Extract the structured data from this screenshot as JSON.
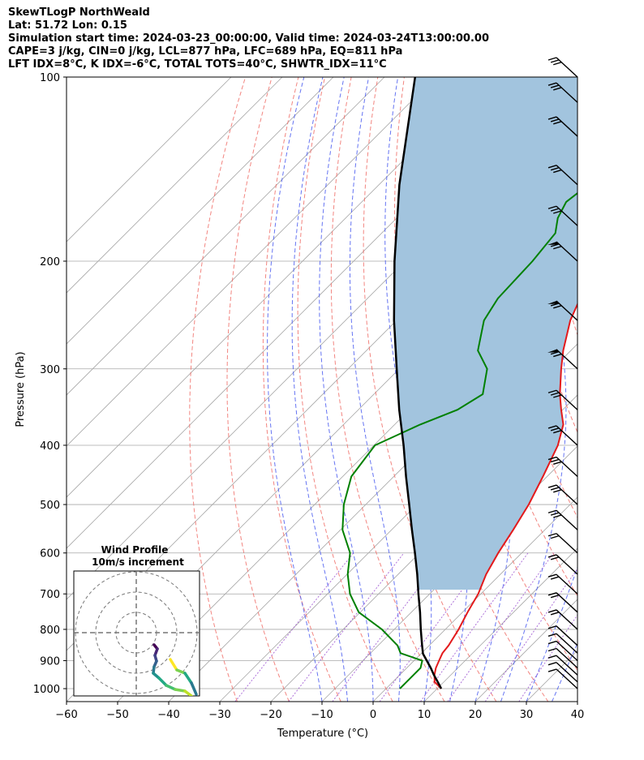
{
  "header": {
    "title": "SkewTLogP NorthWeald",
    "location": "Lat: 51.72   Lon: 0.15",
    "times": "Simulation start time: 2024-03-23_00:00:00, Valid time: 2024-03-24T13:00:00.00",
    "indices_1": "CAPE=3 j/kg, CIN=0 j/kg, LCL=877 hPa, LFC=689 hPa, EQ=811 hPa",
    "indices_2": "LFT IDX=8°C, K IDX=-6°C, TOTAL TOTS=40°C, SHWTR_IDX=11°C"
  },
  "colors": {
    "temperature": "#e31a1c",
    "dewpoint": "#008000",
    "parcel": "#000000",
    "cape_fill": "#a2c4de",
    "dry_adiabat": "#f0706a",
    "moist_adiabat": "#4a5cf0",
    "mixing_ratio": "#9a4fd0",
    "isotherm": "#a8a8a8"
  },
  "chart_data": [
    {
      "type": "line",
      "subtype": "skew-t log-p",
      "xlabel": "Temperature (°C)",
      "ylabel": "Pressure (hPa)",
      "xlim": [
        -60,
        40
      ],
      "ylim": [
        1050,
        100
      ],
      "yscale": "log",
      "skew": 45,
      "x_ticks": [
        "−60",
        "−50",
        "−40",
        "−30",
        "−20",
        "−10",
        "0",
        "10",
        "20",
        "30",
        "40"
      ],
      "y_ticks": [
        100,
        200,
        300,
        400,
        500,
        600,
        700,
        800,
        900,
        1000
      ],
      "series": [
        {
          "key": "temperature",
          "points": [
            [
              1000,
              10.8
            ],
            [
              975,
              8.2
            ],
            [
              950,
              6.8
            ],
            [
              925,
              5.7
            ],
            [
              900,
              4.9
            ],
            [
              875,
              4.1
            ],
            [
              850,
              3.8
            ],
            [
              800,
              2.6
            ],
            [
              750,
              1.0
            ],
            [
              700,
              -0.5
            ],
            [
              650,
              -2.8
            ],
            [
              600,
              -4.6
            ],
            [
              550,
              -6.2
            ],
            [
              500,
              -8.1
            ],
            [
              450,
              -10.8
            ],
            [
              400,
              -14.0
            ],
            [
              370,
              -17.0
            ],
            [
              350,
              -20.3
            ],
            [
              330,
              -23.6
            ],
            [
              300,
              -28.3
            ],
            [
              280,
              -31.5
            ],
            [
              250,
              -36.0
            ],
            [
              230,
              -38.4
            ],
            [
              215,
              -39.7
            ],
            [
              200,
              -40.8
            ],
            [
              180,
              -42.1
            ],
            [
              160,
              -42.5
            ],
            [
              140,
              -41.4
            ],
            [
              120,
              -38.3
            ],
            [
              110,
              -35.3
            ],
            [
              100,
              -31.3
            ]
          ]
        },
        {
          "key": "dewpoint",
          "points": [
            [
              1000,
              2.7
            ],
            [
              975,
              2.7
            ],
            [
              950,
              2.7
            ],
            [
              925,
              2.7
            ],
            [
              900,
              1.6
            ],
            [
              875,
              -4.1
            ],
            [
              850,
              -6.2
            ],
            [
              800,
              -12.4
            ],
            [
              750,
              -20.3
            ],
            [
              700,
              -25.6
            ],
            [
              650,
              -29.9
            ],
            [
              600,
              -33.6
            ],
            [
              550,
              -39.6
            ],
            [
              500,
              -44.3
            ],
            [
              450,
              -48.3
            ],
            [
              400,
              -49.8
            ],
            [
              370,
              -45.0
            ],
            [
              350,
              -40.6
            ],
            [
              330,
              -38.7
            ],
            [
              300,
              -42.8
            ],
            [
              280,
              -48.2
            ],
            [
              250,
              -52.9
            ],
            [
              230,
              -54.5
            ],
            [
              200,
              -55.0
            ],
            [
              180,
              -56.0
            ],
            [
              170,
              -58.5
            ],
            [
              160,
              -60.0
            ],
            [
              140,
              -58.0
            ],
            [
              120,
              -57.2
            ],
            [
              110,
              -56.7
            ],
            [
              100,
              -56.0
            ]
          ]
        },
        {
          "key": "parcel",
          "points": [
            [
              1000,
              10.8
            ],
            [
              975,
              8.8
            ],
            [
              950,
              6.7
            ],
            [
              925,
              4.7
            ],
            [
              900,
              2.5
            ],
            [
              877,
              0.4
            ],
            [
              850,
              -1.4
            ],
            [
              800,
              -4.8
            ],
            [
              750,
              -8.3
            ],
            [
              700,
              -12.2
            ],
            [
              650,
              -16.3
            ],
            [
              600,
              -20.9
            ],
            [
              550,
              -26.0
            ],
            [
              500,
              -31.5
            ],
            [
              450,
              -37.6
            ],
            [
              400,
              -44.2
            ],
            [
              350,
              -52.0
            ],
            [
              300,
              -60.5
            ],
            [
              250,
              -70.5
            ],
            [
              200,
              -82.0
            ],
            [
              150,
              -96.0
            ],
            [
              100,
              -114.0
            ]
          ]
        }
      ],
      "wind_barbs_hpa": [
        1000,
        975,
        950,
        925,
        900,
        875,
        850,
        800,
        750,
        700,
        650,
        600,
        550,
        500,
        450,
        400,
        350,
        300,
        250,
        200,
        175,
        150,
        125,
        110,
        100
      ]
    },
    {
      "type": "line",
      "subtype": "hodograph",
      "title": "Wind Profile",
      "subtitle": "10m/s increment"
    }
  ]
}
